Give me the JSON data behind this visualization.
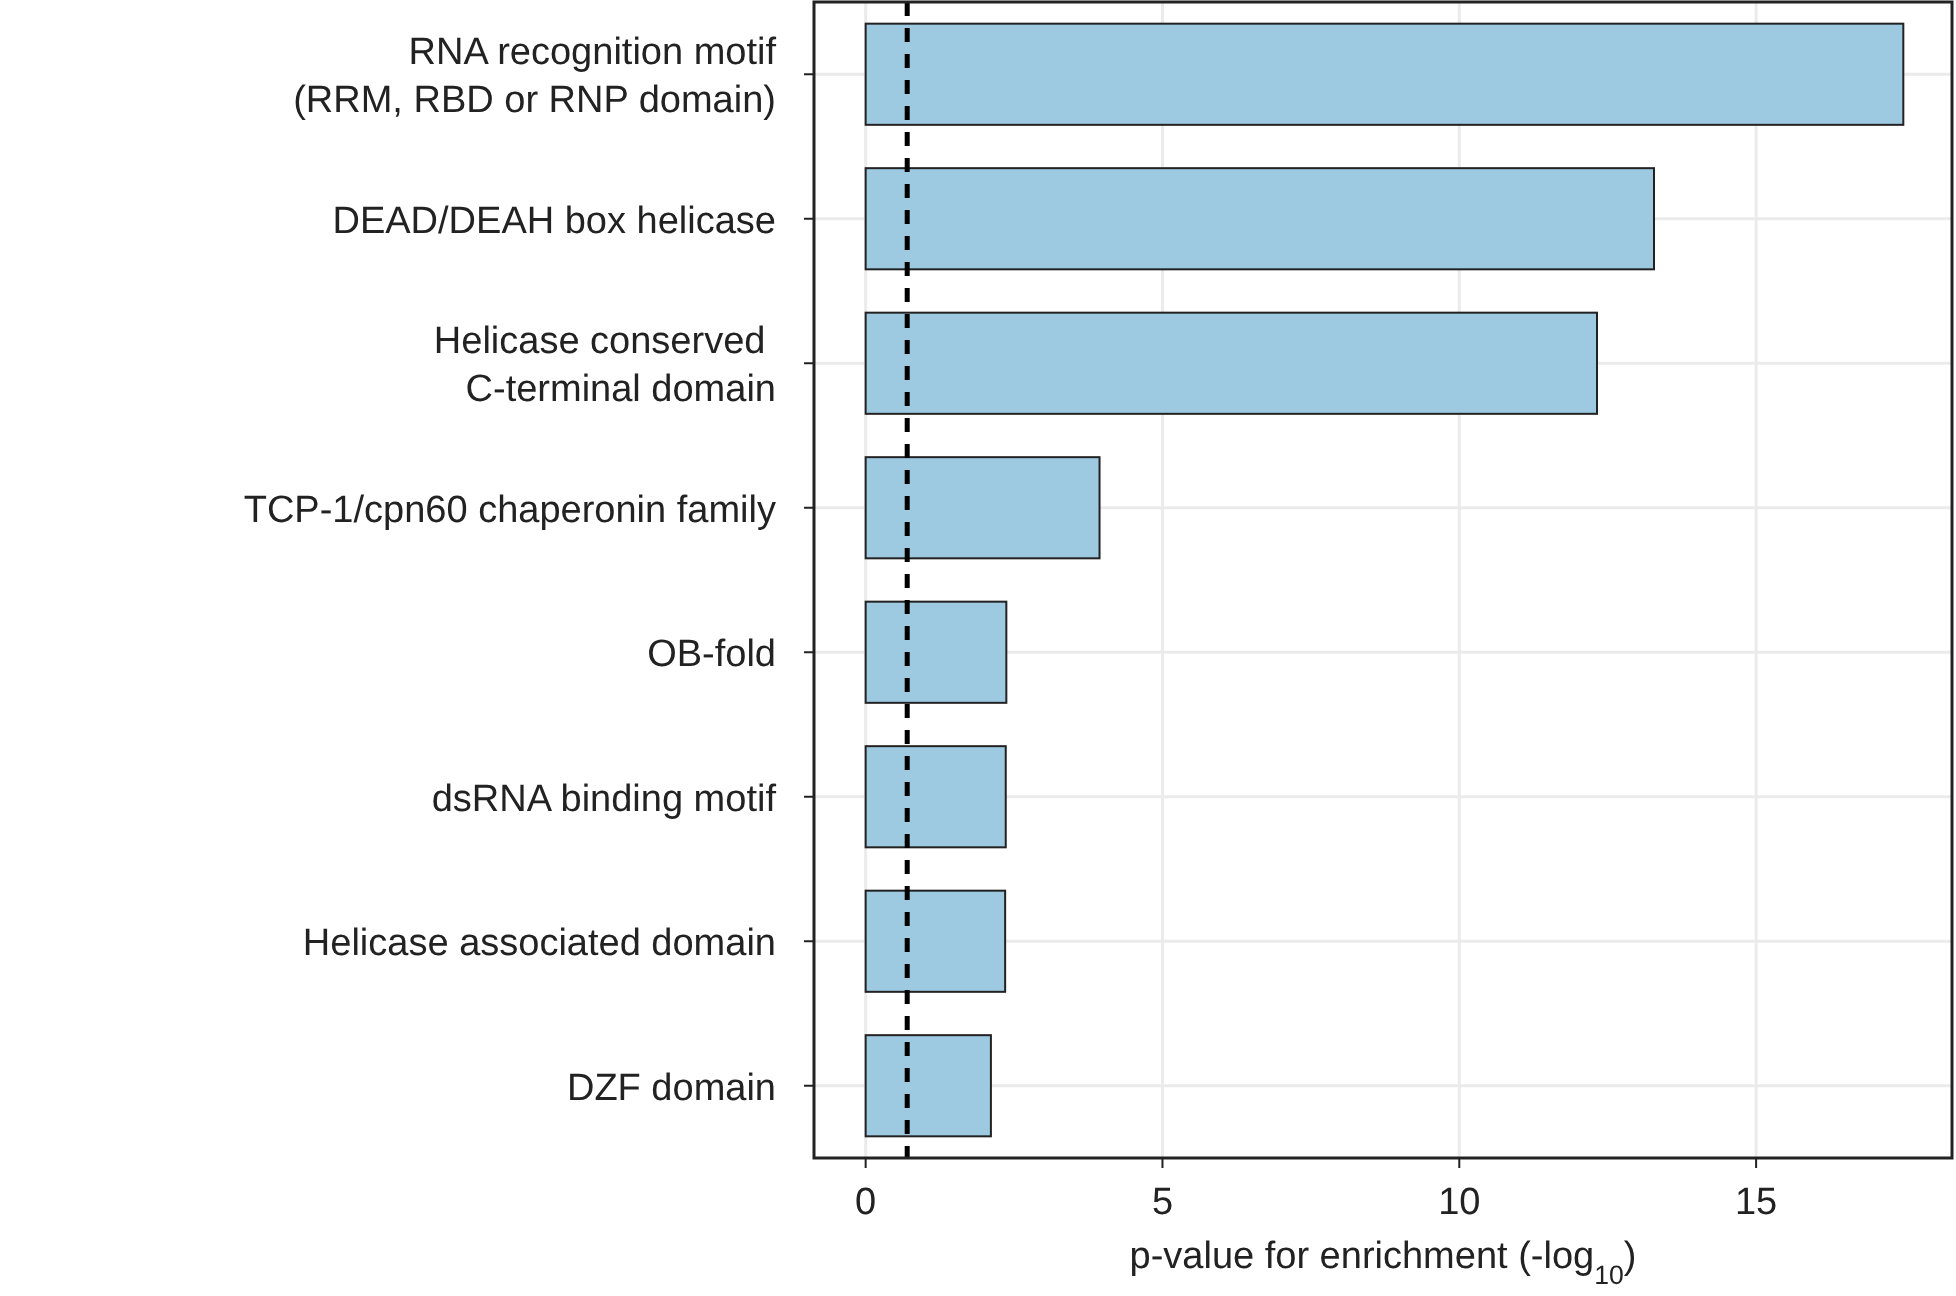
{
  "chart_data": {
    "type": "bar",
    "orientation": "horizontal",
    "categories": [
      "RNA recognition motif\n(RRM, RBD or RNP domain)",
      "DEAD/DEAH box helicase",
      "Helicase conserved \nC-terminal domain",
      "TCP-1/cpn60 chaperonin family",
      "OB-fold",
      "dsRNA binding motif",
      "Helicase associated domain",
      "DZF domain"
    ],
    "values": [
      17.48,
      13.28,
      12.32,
      3.94,
      2.37,
      2.36,
      2.35,
      2.11
    ],
    "color": "#9ecae1",
    "xlim": [
      -0.87,
      18.3
    ],
    "xticks": [
      0,
      5,
      10,
      15
    ],
    "xlabel": "p-value for enrichment (-log$_{10}$)",
    "grid": true,
    "ref_lines": [
      {
        "axis": "x",
        "value": 0.7,
        "line_style": "dashed",
        "color": "#000000"
      }
    ]
  }
}
